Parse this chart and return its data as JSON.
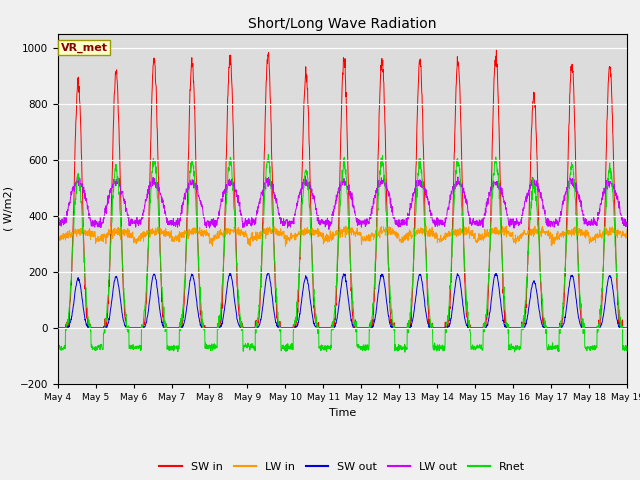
{
  "title": "Short/Long Wave Radiation",
  "xlabel": "Time",
  "ylabel": "( W/m2)",
  "ylim": [
    -200,
    1050
  ],
  "yticks": [
    -200,
    0,
    200,
    400,
    600,
    800,
    1000
  ],
  "xtick_labels": [
    "May 4",
    "May 5",
    "May 6",
    "May 7",
    "May 8",
    "May 9",
    "May 10",
    "May 11",
    "May 12",
    "May 13",
    "May 14",
    "May 15",
    "May 16",
    "May 17",
    "May 18",
    "May 19"
  ],
  "colors": {
    "SW_in": "#ff0000",
    "LW_in": "#ff9900",
    "SW_out": "#0000dd",
    "LW_out": "#cc00ff",
    "Rnet": "#00dd00"
  },
  "legend_labels": [
    "SW in",
    "LW in",
    "SW out",
    "LW out",
    "Rnet"
  ],
  "station_label": "VR_met",
  "plot_bg_color": "#dcdcdc",
  "fig_bg_color": "#f0f0f0",
  "n_days": 15,
  "hours_per_day": 24,
  "pts_per_hour": 6
}
